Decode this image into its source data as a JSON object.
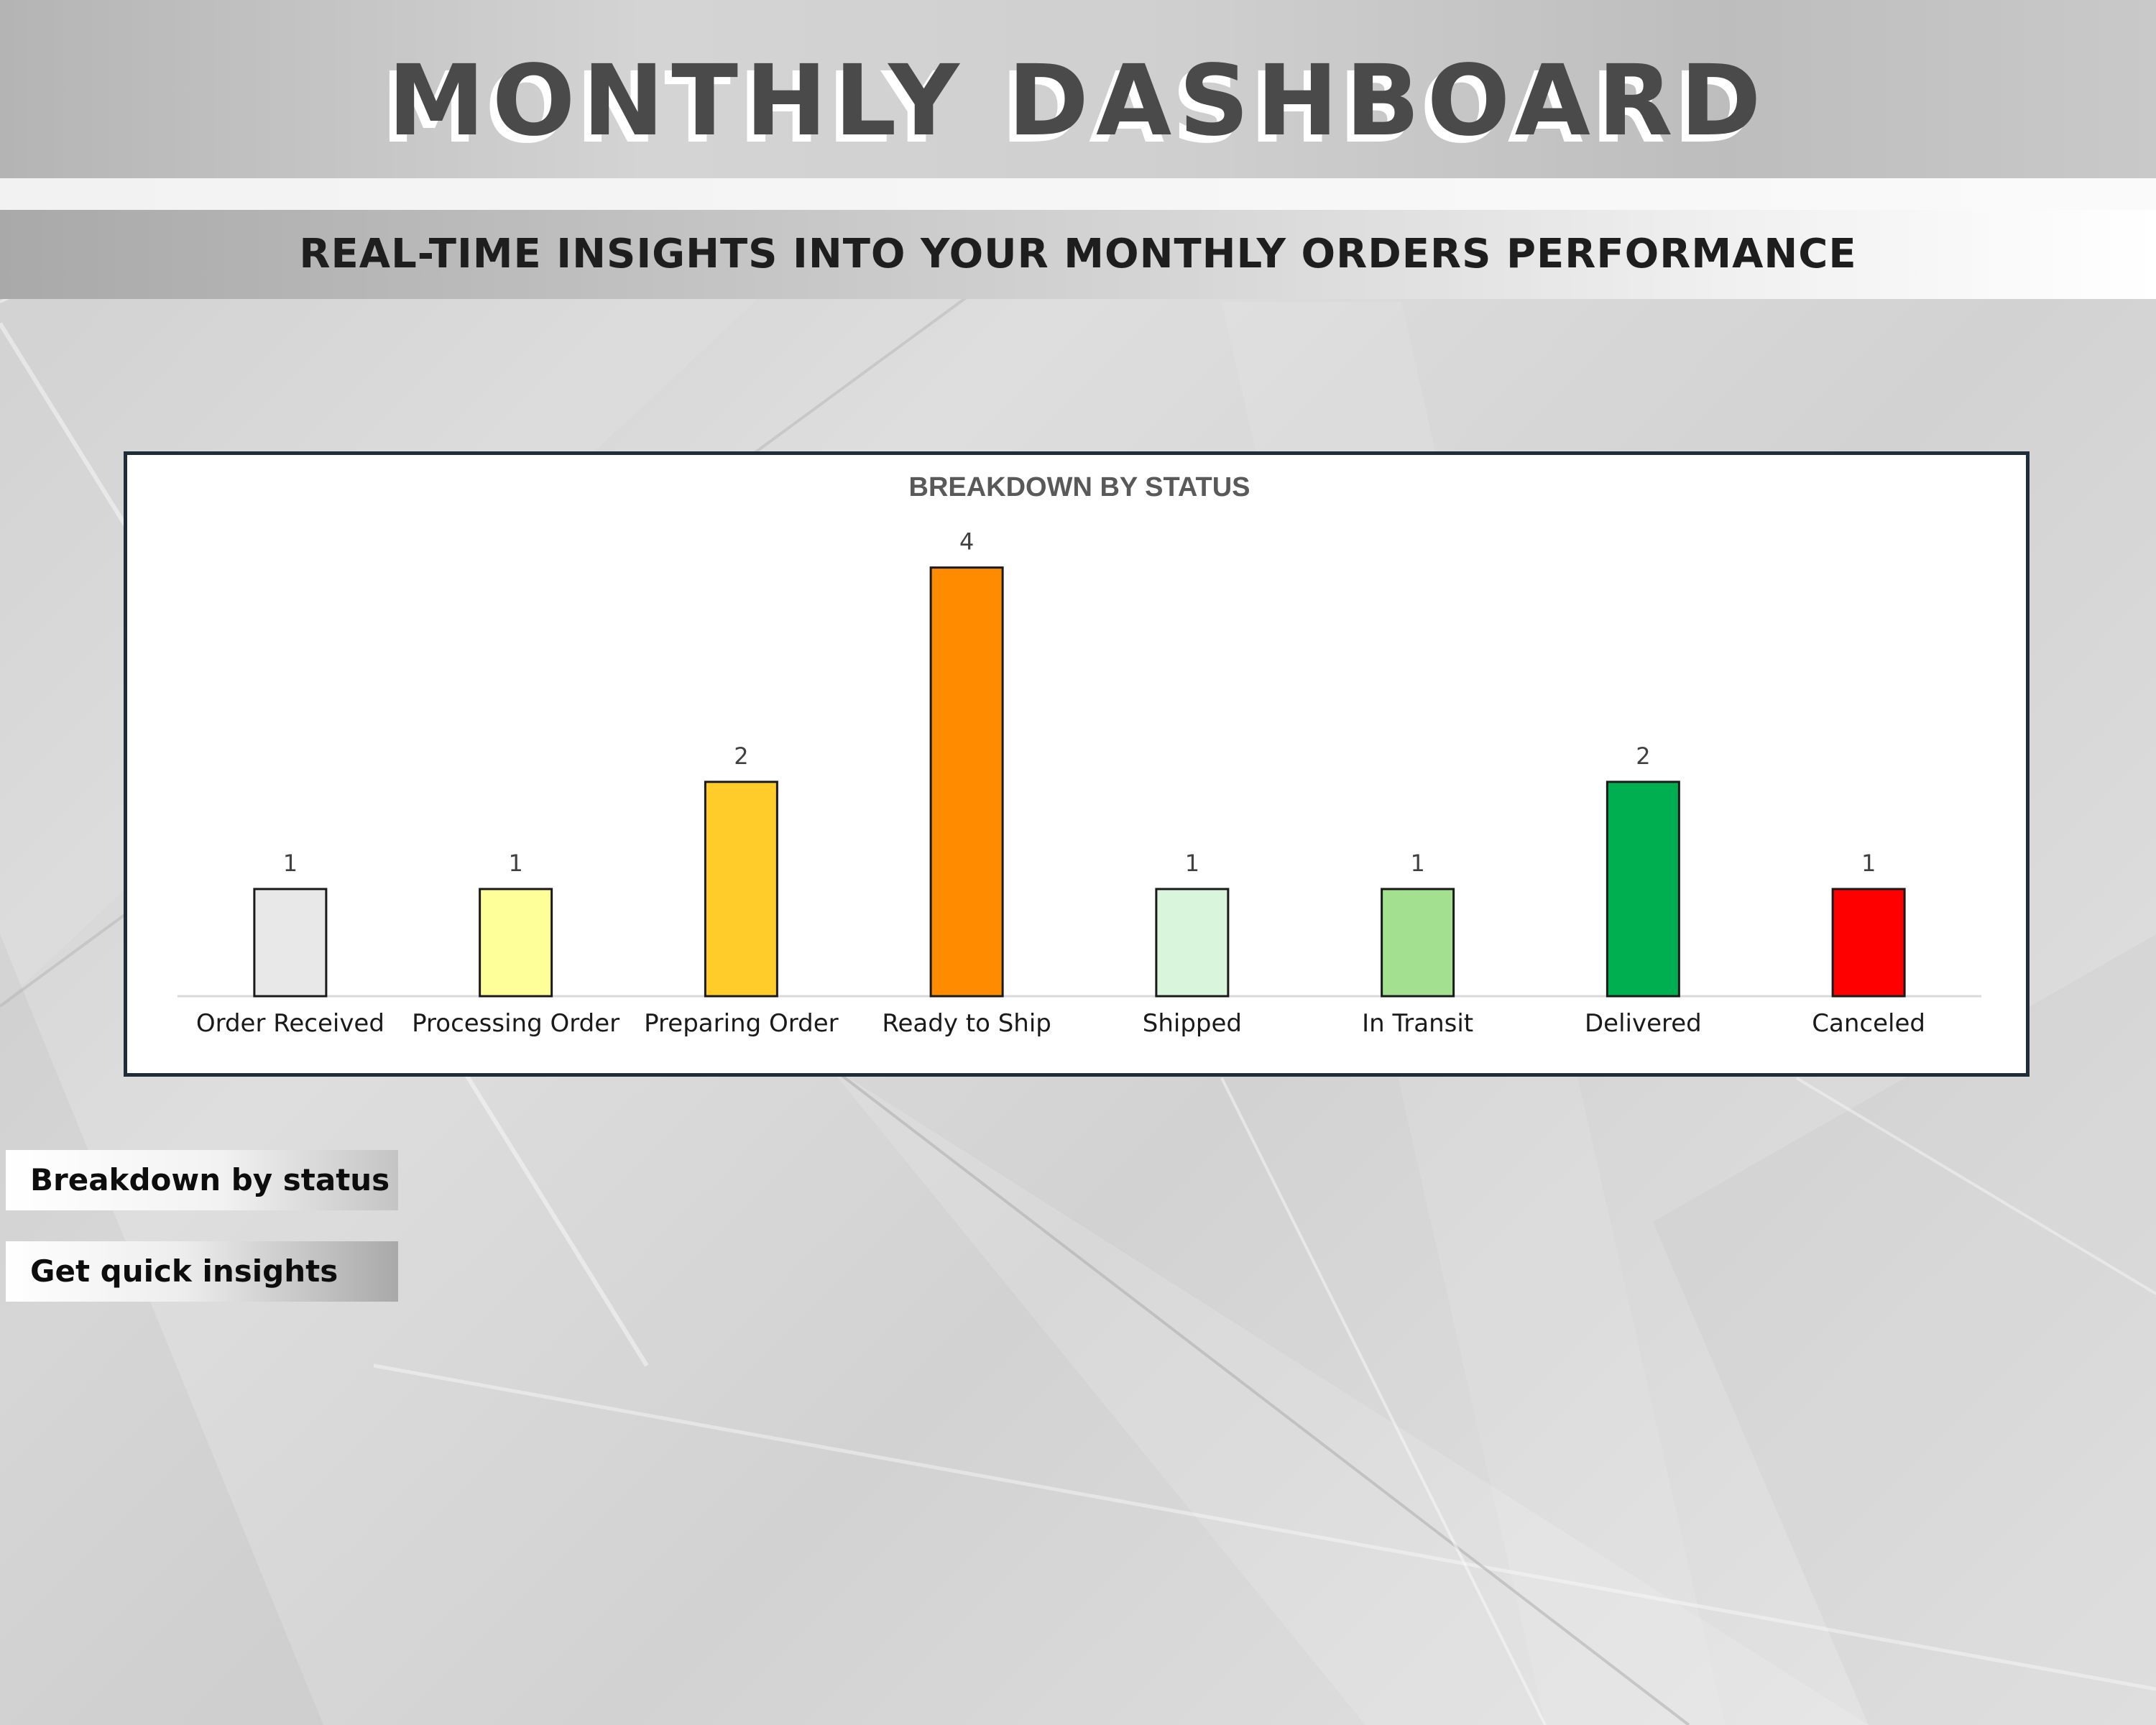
{
  "header": {
    "title": "MONTHLY DASHBOARD",
    "subtitle": "REAL-TIME INSIGHTS INTO YOUR MONTHLY ORDERS PERFORMANCE"
  },
  "chart_data": {
    "type": "bar",
    "title": "BREAKDOWN BY STATUS",
    "xlabel": "",
    "ylabel": "",
    "categories": [
      "Order Received",
      "Processing Order",
      "Preparing Order",
      "Ready to Ship",
      "Shipped",
      "In Transit",
      "Delivered",
      "Canceled"
    ],
    "values": [
      1,
      1,
      2,
      4,
      1,
      1,
      2,
      1
    ],
    "colors": [
      "#e8e8e8",
      "#ffff99",
      "#ffcc29",
      "#ff8c00",
      "#d9f5dc",
      "#a3e08f",
      "#00b050",
      "#ff0000"
    ],
    "ylim": [
      0,
      4.4
    ],
    "grid": false,
    "legend": "none",
    "data_labels": true
  },
  "sidebar": {
    "buttons": [
      {
        "label": "Breakdown by status"
      },
      {
        "label": "Get quick insights"
      }
    ]
  }
}
